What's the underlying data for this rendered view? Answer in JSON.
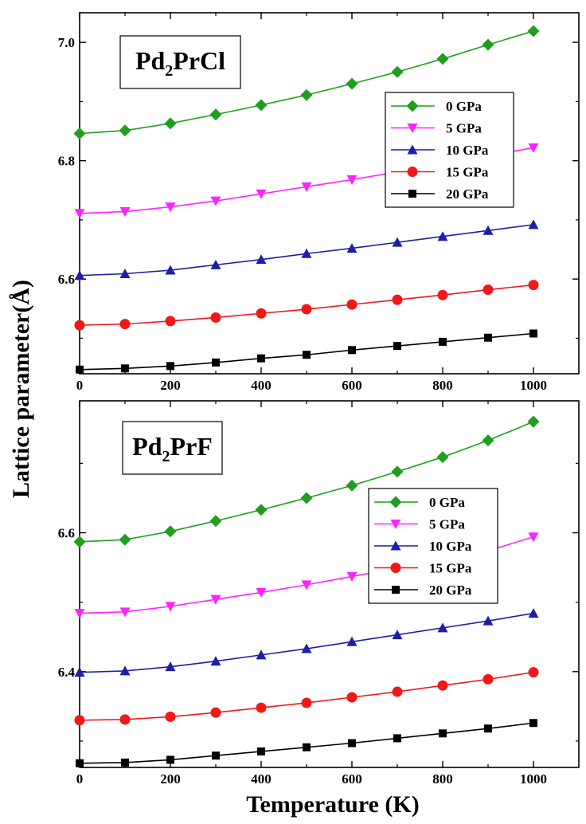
{
  "figure": {
    "ylabel": "Lattice parameter(Å)",
    "xlabel": "Temperature (K)"
  },
  "series_meta": [
    {
      "name": "0 GPa",
      "color": "#1f9e1f",
      "marker": "diamond"
    },
    {
      "name": "5 GPa",
      "color": "#ff22ff",
      "marker": "triangle-down"
    },
    {
      "name": "10 GPa",
      "color": "#1e1ea8",
      "marker": "triangle-up"
    },
    {
      "name": "15 GPa",
      "color": "#f01818",
      "marker": "circle"
    },
    {
      "name": "20 GPa",
      "color": "#000000",
      "marker": "square"
    }
  ],
  "chart_data": [
    {
      "type": "line",
      "title": {
        "prefix": "Pd",
        "subscript": "2",
        "suffix": "PrCl"
      },
      "xlabel": "Temperature (K)",
      "ylabel": "Lattice parameter(Å)",
      "xlim": [
        0,
        1100
      ],
      "ylim": [
        6.44,
        7.05
      ],
      "xticks": [
        "0",
        "200",
        "400",
        "600",
        "800",
        "1000"
      ],
      "yticks": [
        "6.6",
        "6.8",
        "7.0"
      ],
      "legend_position": "upper-right",
      "x": [
        0,
        100,
        200,
        300,
        400,
        500,
        600,
        700,
        800,
        900,
        1000
      ],
      "series": [
        {
          "name": "0 GPa",
          "values": [
            6.846,
            6.851,
            6.863,
            6.878,
            6.894,
            6.911,
            6.93,
            6.95,
            6.972,
            6.996,
            7.019
          ]
        },
        {
          "name": "5 GPa",
          "values": [
            6.711,
            6.714,
            6.722,
            6.732,
            6.744,
            6.756,
            6.768,
            6.781,
            6.794,
            6.808,
            6.822
          ]
        },
        {
          "name": "10 GPa",
          "values": [
            6.606,
            6.609,
            6.615,
            6.624,
            6.633,
            6.643,
            6.652,
            6.662,
            6.672,
            6.682,
            6.692
          ]
        },
        {
          "name": "15 GPa",
          "values": [
            6.522,
            6.524,
            6.529,
            6.535,
            6.542,
            6.549,
            6.557,
            6.565,
            6.573,
            6.582,
            6.59
          ]
        },
        {
          "name": "20 GPa",
          "values": [
            6.447,
            6.449,
            6.453,
            6.459,
            6.466,
            6.472,
            6.48,
            6.487,
            6.494,
            6.501,
            6.508
          ]
        }
      ]
    },
    {
      "type": "line",
      "title": {
        "prefix": "Pd",
        "subscript": "2",
        "suffix": "PrF"
      },
      "xlabel": "Temperature (K)",
      "ylabel": "Lattice parameter(Å)",
      "xlim": [
        0,
        1100
      ],
      "ylim": [
        6.262,
        6.79
      ],
      "xticks": [
        "0",
        "200",
        "400",
        "600",
        "800",
        "1000"
      ],
      "yticks": [
        "6.4",
        "6.6"
      ],
      "legend_position": "right",
      "x": [
        0,
        100,
        200,
        300,
        400,
        500,
        600,
        700,
        800,
        900,
        1000
      ],
      "series": [
        {
          "name": "0 GPa",
          "values": [
            6.587,
            6.59,
            6.602,
            6.617,
            6.633,
            6.65,
            6.668,
            6.688,
            6.709,
            6.733,
            6.76
          ]
        },
        {
          "name": "5 GPa",
          "values": [
            6.484,
            6.486,
            6.494,
            6.504,
            6.514,
            6.525,
            6.537,
            6.549,
            6.561,
            6.574,
            6.594
          ]
        },
        {
          "name": "10 GPa",
          "values": [
            6.399,
            6.401,
            6.407,
            6.415,
            6.424,
            6.433,
            6.443,
            6.453,
            6.463,
            6.473,
            6.484
          ]
        },
        {
          "name": "15 GPa",
          "values": [
            6.33,
            6.331,
            6.335,
            6.341,
            6.348,
            6.355,
            6.363,
            6.371,
            6.38,
            6.389,
            6.399
          ]
        },
        {
          "name": "20 GPa",
          "values": [
            6.268,
            6.269,
            6.273,
            6.279,
            6.285,
            6.291,
            6.297,
            6.304,
            6.311,
            6.318,
            6.326
          ]
        }
      ]
    }
  ]
}
